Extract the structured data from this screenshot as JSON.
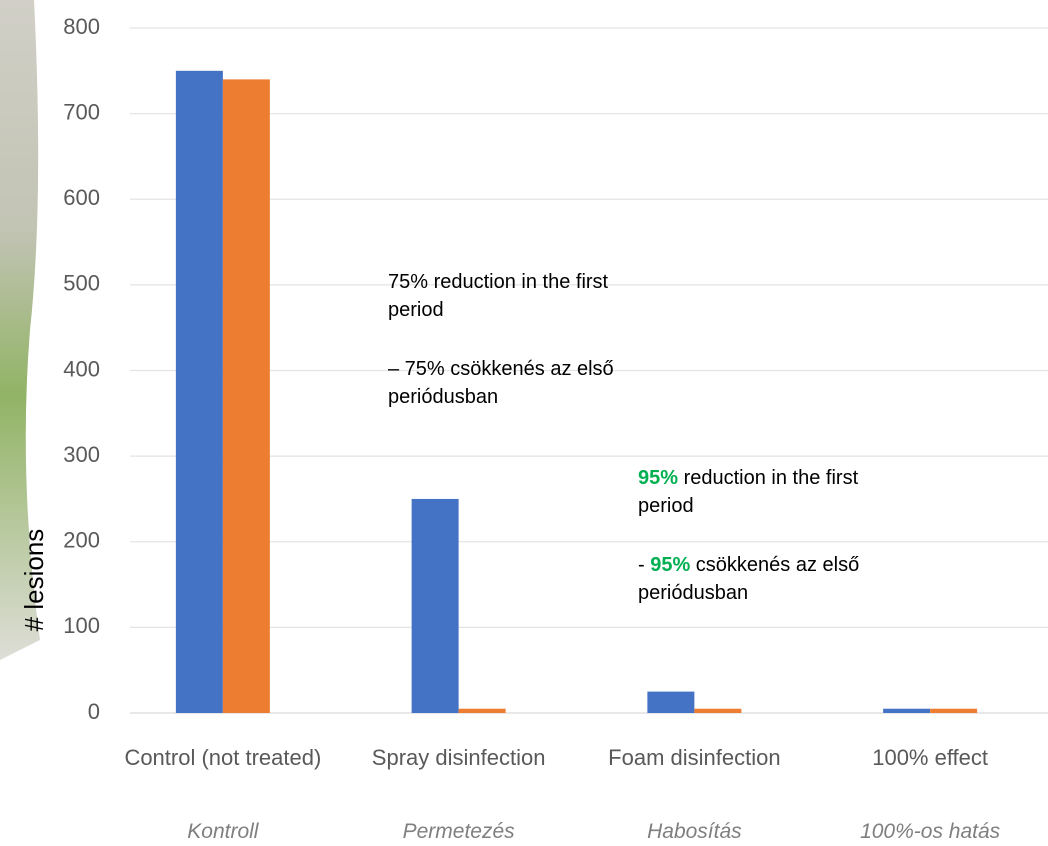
{
  "chart_data": {
    "type": "bar",
    "y_label": "# lesions",
    "categories": [
      "Control (not treated)",
      "Spray disinfection",
      "Foam disinfection",
      "100% effect"
    ],
    "subtitles": [
      "Kontroll",
      "Permetezés",
      "Habosítás",
      "100%-os hatás"
    ],
    "series": [
      {
        "color": "#4472c4",
        "values": [
          750,
          250,
          25,
          5
        ]
      },
      {
        "color": "#ed7d31",
        "values": [
          740,
          5,
          5,
          5
        ]
      }
    ],
    "ylim": [
      0,
      800
    ],
    "yticks": [
      0,
      100,
      200,
      300,
      400,
      500,
      600,
      700,
      800
    ],
    "grid": true,
    "annotations": [
      [
        [
          {
            "text": "75% reduction in the first period"
          }
        ],
        [
          {
            "text": "– 75% csökkenés az első periódusban"
          }
        ]
      ],
      [
        [
          {
            "text": "95%",
            "bold": true,
            "color": "#00b050"
          },
          {
            "text": " reduction in the first period"
          }
        ],
        [
          {
            "text": "- "
          },
          {
            "text": "95%",
            "bold": true,
            "color": "#00b050"
          },
          {
            "text": " csökkenés az első periódusban"
          }
        ]
      ]
    ]
  }
}
